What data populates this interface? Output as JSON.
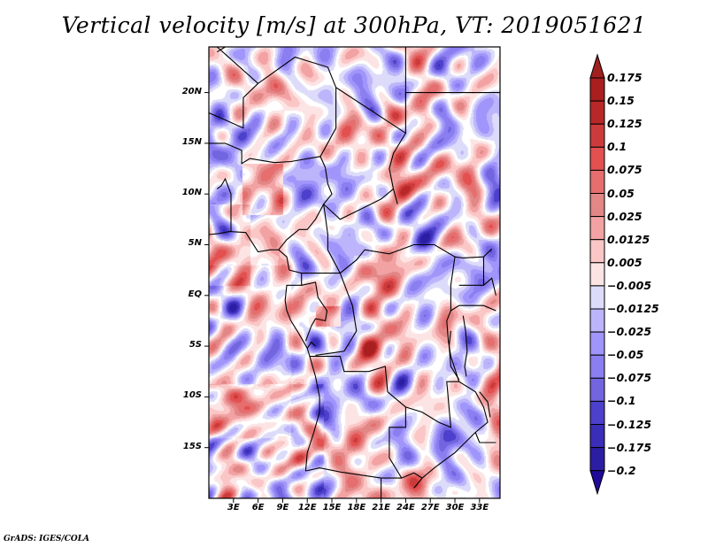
{
  "title": "Vertical velocity [m/s] at 300hPa, VT: 2019051621",
  "credit": "GrADS: IGES/COLA",
  "map": {
    "variable": "Vertical velocity",
    "units": "m/s",
    "level": "300hPa",
    "valid_time": "2019051621",
    "lat_range": [
      -20,
      24.5
    ],
    "lon_range": [
      0,
      35.5
    ],
    "y_ticks": [
      {
        "lat": 20,
        "label": "20N"
      },
      {
        "lat": 15,
        "label": "15N"
      },
      {
        "lat": 10,
        "label": "10N"
      },
      {
        "lat": 5,
        "label": "5N"
      },
      {
        "lat": 0,
        "label": "EQ"
      },
      {
        "lat": -5,
        "label": "5S"
      },
      {
        "lat": -10,
        "label": "10S"
      },
      {
        "lat": -15,
        "label": "15S"
      }
    ],
    "x_ticks": [
      {
        "lon": 3,
        "label": "3E"
      },
      {
        "lon": 6,
        "label": "6E"
      },
      {
        "lon": 9,
        "label": "9E"
      },
      {
        "lon": 12,
        "label": "12E"
      },
      {
        "lon": 15,
        "label": "15E"
      },
      {
        "lon": 18,
        "label": "18E"
      },
      {
        "lon": 21,
        "label": "21E"
      },
      {
        "lon": 24,
        "label": "24E"
      },
      {
        "lon": 27,
        "label": "27E"
      },
      {
        "lon": 30,
        "label": "30E"
      },
      {
        "lon": 33,
        "label": "33E"
      }
    ]
  },
  "colorbar": {
    "levels": [
      {
        "label": "0.175",
        "color": "#a91e1e"
      },
      {
        "label": "0.15",
        "color": "#b82828"
      },
      {
        "label": "0.125",
        "color": "#cc3b3b"
      },
      {
        "label": "0.1",
        "color": "#e25050"
      },
      {
        "label": "0.075",
        "color": "#e66e6e"
      },
      {
        "label": "0.05",
        "color": "#e28686"
      },
      {
        "label": "0.025",
        "color": "#f2a2a2"
      },
      {
        "label": "0.0125",
        "color": "#fac6c6"
      },
      {
        "label": "0.005",
        "color": "#fde4e4"
      },
      {
        "label": "-0.005",
        "color": "#ffffff"
      },
      {
        "label": "-0.0125",
        "color": "#dcdcfa"
      },
      {
        "label": "-0.025",
        "color": "#bdb5fb"
      },
      {
        "label": "-0.05",
        "color": "#a095fa"
      },
      {
        "label": "-0.075",
        "color": "#8a7ef0"
      },
      {
        "label": "-0.1",
        "color": "#7365e0"
      },
      {
        "label": "-0.125",
        "color": "#4c40cc"
      },
      {
        "label": "-0.175",
        "color": "#3a2db8"
      },
      {
        "label": "-0.2",
        "color": "#2c1ea3"
      }
    ],
    "top_arrow_color": "#a02020",
    "bottom_arrow_color": "#1f0a99"
  }
}
